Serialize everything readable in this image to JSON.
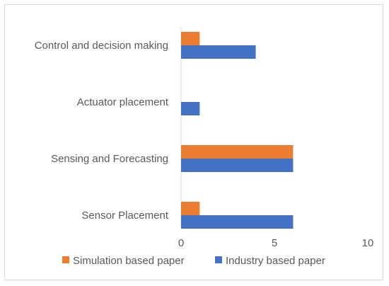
{
  "chart_data": {
    "type": "bar",
    "orientation": "horizontal",
    "categories": [
      "Control and decision making",
      "Actuator placement",
      "Sensing and Forecasting",
      "Sensor Placement"
    ],
    "series": [
      {
        "name": "Simulation based paper",
        "values": [
          1,
          0,
          6,
          1
        ],
        "color": "#ED7D31"
      },
      {
        "name": "Industry based paper",
        "values": [
          4,
          1,
          6,
          6
        ],
        "color": "#4472C4"
      }
    ],
    "xlim": [
      0,
      10
    ],
    "xticks": [
      "0",
      "5",
      "10"
    ],
    "grid": false,
    "legend_position": "bottom"
  }
}
